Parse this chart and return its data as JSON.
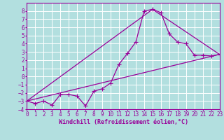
{
  "xlabel": "Windchill (Refroidissement éolien,°C)",
  "bg_color": "#b2dfdf",
  "grid_color": "#ffffff",
  "line_color": "#990099",
  "xlim": [
    0,
    23
  ],
  "ylim": [
    -4,
    9
  ],
  "xticks": [
    0,
    1,
    2,
    3,
    4,
    5,
    6,
    7,
    8,
    9,
    10,
    11,
    12,
    13,
    14,
    15,
    16,
    17,
    18,
    19,
    20,
    21,
    22,
    23
  ],
  "yticks": [
    -4,
    -3,
    -2,
    -1,
    0,
    1,
    2,
    3,
    4,
    5,
    6,
    7,
    8
  ],
  "series": [
    [
      0,
      -3.0
    ],
    [
      1,
      -3.3
    ],
    [
      2,
      -3.0
    ],
    [
      3,
      -3.5
    ],
    [
      4,
      -2.2
    ],
    [
      5,
      -2.2
    ],
    [
      6,
      -2.4
    ],
    [
      7,
      -3.6
    ],
    [
      8,
      -1.8
    ],
    [
      9,
      -1.5
    ],
    [
      10,
      -0.8
    ],
    [
      11,
      1.5
    ],
    [
      12,
      2.8
    ],
    [
      13,
      4.2
    ],
    [
      14,
      8.0
    ],
    [
      15,
      8.2
    ],
    [
      16,
      7.8
    ],
    [
      17,
      5.2
    ],
    [
      18,
      4.2
    ],
    [
      19,
      4.0
    ],
    [
      20,
      2.6
    ],
    [
      21,
      2.6
    ],
    [
      22,
      2.5
    ],
    [
      23,
      2.7
    ]
  ],
  "line1": [
    [
      0,
      -3.0
    ],
    [
      23,
      2.7
    ]
  ],
  "line2": [
    [
      0,
      -3.0
    ],
    [
      15,
      8.2
    ]
  ],
  "line3": [
    [
      15,
      8.2
    ],
    [
      23,
      2.7
    ]
  ],
  "marker": "+",
  "markersize": 4,
  "linewidth": 0.9,
  "tick_fontsize": 5.5,
  "xlabel_fontsize": 6.0
}
